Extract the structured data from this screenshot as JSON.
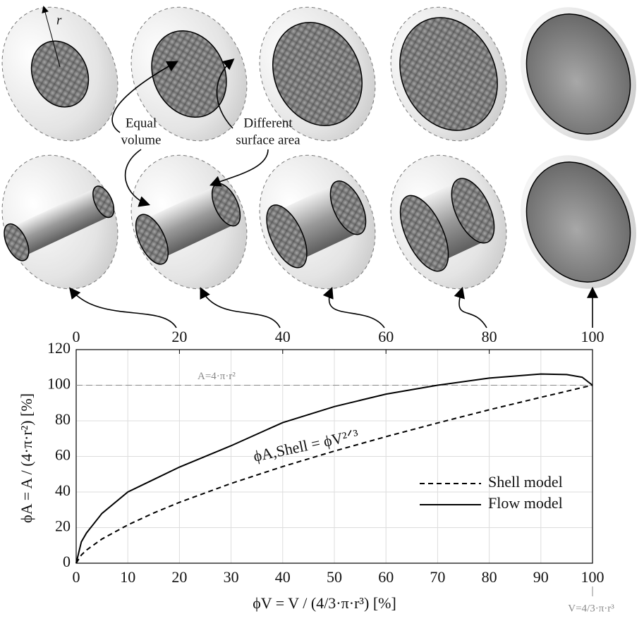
{
  "illustration": {
    "radius_label": "r",
    "equal_volume": [
      "Equal",
      "volume"
    ],
    "different_surface": [
      "Different",
      "surface area"
    ]
  },
  "chart_data": {
    "type": "line",
    "xlabel": "ϕV = V / (4/3·π·r³) [%]",
    "ylabel": "ϕA = A / (4·π·r²) [%]",
    "x": [
      0,
      1,
      2,
      5,
      10,
      15,
      20,
      30,
      40,
      50,
      60,
      70,
      80,
      90,
      95,
      98,
      100
    ],
    "series": [
      {
        "name": "Shell model",
        "color": "#000000",
        "dash": true,
        "values": [
          0,
          4.6,
          7.4,
          13.6,
          21.5,
          28.2,
          34.2,
          44.8,
          54.3,
          63,
          71.1,
          78.8,
          86.2,
          93.2,
          96.6,
          98.7,
          100
        ]
      },
      {
        "name": "Flow model",
        "color": "#000000",
        "dash": false,
        "values": [
          0,
          12,
          17,
          28,
          40,
          47,
          54,
          66,
          79,
          88,
          95,
          100,
          104,
          106.3,
          106,
          104.5,
          100
        ]
      }
    ],
    "xlim": [
      0,
      100
    ],
    "ylim": [
      0,
      120
    ],
    "xticks": [
      0,
      10,
      20,
      30,
      40,
      50,
      60,
      70,
      80,
      90,
      100
    ],
    "yticks": [
      0,
      20,
      40,
      60,
      80,
      100,
      120
    ],
    "top_xticks": [
      0,
      20,
      40,
      60,
      80,
      100
    ],
    "grid": true,
    "legend": "right",
    "reference_line": {
      "value": 100,
      "label": "A=4·π·r²"
    },
    "curve_label": "ϕA,Shell = ϕV²ᐟ³",
    "x_end_label": "V=4/3·π·r³"
  }
}
